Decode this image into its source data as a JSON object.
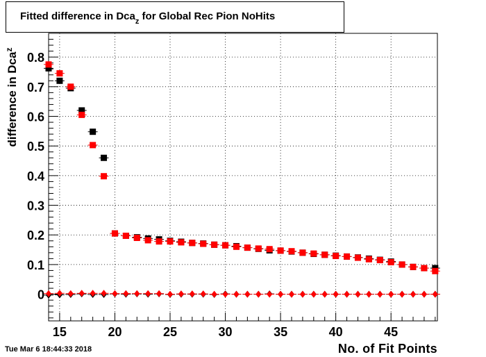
{
  "header": {
    "title_main": "Fitted difference in Dca",
    "title_sub": "z",
    "title_rest": " for Global Rec Pion NoHits"
  },
  "footer": {
    "timestamp": "Tue Mar  6 18:44:33 2018"
  },
  "chart_data": {
    "type": "scatter",
    "xlabel": "No. of Fit Points",
    "ylabel_main": "difference in Dca",
    "ylabel_sub": "z",
    "xlim": [
      14,
      49.2
    ],
    "ylim": [
      -0.09,
      0.88
    ],
    "xticks": [
      15,
      20,
      25,
      30,
      35,
      40,
      45
    ],
    "xtick_labels": [
      "15",
      "20",
      "25",
      "30",
      "35",
      "40",
      "45"
    ],
    "yticks": [
      0,
      0.1,
      0.2,
      0.3,
      0.4,
      0.5,
      0.6,
      0.7,
      0.8
    ],
    "ytick_labels": [
      "0",
      "0.1",
      "0.2",
      "0.3",
      "0.4",
      "0.5",
      "0.6",
      "0.7",
      "0.8"
    ],
    "grid": true,
    "x": [
      14,
      15,
      16,
      17,
      18,
      19,
      20,
      21,
      22,
      23,
      24,
      25,
      26,
      27,
      28,
      29,
      30,
      31,
      32,
      33,
      34,
      35,
      36,
      37,
      38,
      39,
      40,
      41,
      42,
      43,
      44,
      45,
      46,
      47,
      48,
      49
    ],
    "series": [
      {
        "color": "#000000",
        "marker": "square",
        "values": [
          0.762,
          0.72,
          0.695,
          0.62,
          0.548,
          0.46,
          0.205,
          0.197,
          0.192,
          0.188,
          0.185,
          0.18,
          0.177,
          0.173,
          0.171,
          0.167,
          0.165,
          0.162,
          0.157,
          0.153,
          0.148,
          0.147,
          0.144,
          0.14,
          0.136,
          0.133,
          0.13,
          0.127,
          0.124,
          0.12,
          0.116,
          0.11,
          0.1,
          0.092,
          0.088,
          0.088
        ]
      },
      {
        "color": "#ff0000",
        "marker": "square",
        "values": [
          0.775,
          0.745,
          0.7,
          0.605,
          0.503,
          0.398,
          0.205,
          0.197,
          0.19,
          0.182,
          0.178,
          0.178,
          0.175,
          0.173,
          0.17,
          0.167,
          0.165,
          0.16,
          0.157,
          0.154,
          0.152,
          0.147,
          0.145,
          0.14,
          0.137,
          0.133,
          0.129,
          0.127,
          0.123,
          0.118,
          0.115,
          0.108,
          0.1,
          0.092,
          0.088,
          0.078
        ]
      },
      {
        "color": "#000000",
        "marker": "diamond",
        "values": [
          -0.003,
          -0.002,
          -0.001,
          0.001,
          -0.001,
          -0.001,
          0.001,
          0.0,
          0.001,
          0.0,
          0.001,
          -0.001,
          0.0,
          0.0,
          0.0,
          -0.001,
          0.001,
          0.0,
          0.0,
          0.0,
          0.001,
          0.0,
          0.0,
          0.0,
          0.0,
          0.0,
          0.0,
          0.0,
          0.0,
          0.0,
          0.0,
          0.0,
          0.0,
          0.0,
          0.0,
          0.0
        ]
      },
      {
        "color": "#ff0000",
        "marker": "diamond",
        "values": [
          0.002,
          0.003,
          0.002,
          0.003,
          0.003,
          0.003,
          0.002,
          0.002,
          0.002,
          0.002,
          0.002,
          0.0,
          0.001,
          0.001,
          0.001,
          0.0,
          0.0,
          0.0,
          0.0,
          0.0,
          0.0,
          0.0,
          0.0,
          0.0,
          0.0,
          0.0,
          0.0,
          0.0,
          0.0,
          0.0,
          0.0,
          0.0,
          0.0,
          0.0,
          0.0,
          0.0
        ]
      }
    ]
  }
}
